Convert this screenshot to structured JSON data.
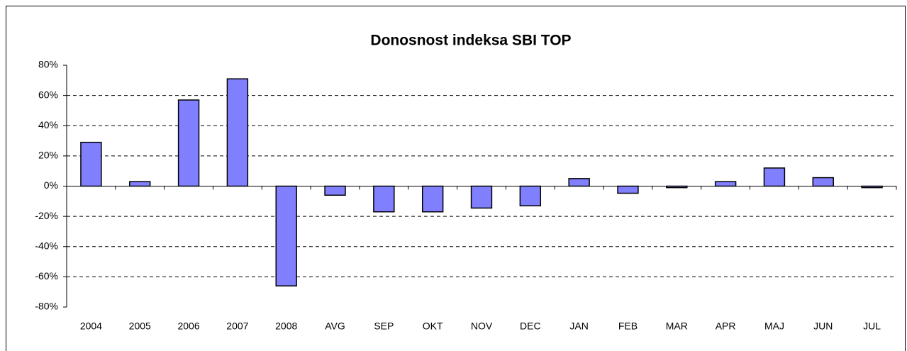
{
  "chart_data": {
    "type": "bar",
    "title": "Donosnost indeksa SBI TOP",
    "categories": [
      "2004",
      "2005",
      "2006",
      "2007",
      "2008",
      "AVG",
      "SEP",
      "OKT",
      "NOV",
      "DEC",
      "JAN",
      "FEB",
      "MAR",
      "APR",
      "MAJ",
      "JUN",
      "JUL"
    ],
    "values": [
      29,
      3,
      57,
      71,
      -66,
      -6,
      -17,
      -17,
      -14.5,
      -13,
      5,
      -4.7,
      -1,
      3,
      12,
      5.6,
      -1
    ],
    "color": "#8080ff",
    "ylim": [
      -80,
      80
    ],
    "yticks": [
      {
        "value": -80,
        "label": "-80%"
      },
      {
        "value": -60,
        "label": "-60%"
      },
      {
        "value": -40,
        "label": "-40%"
      },
      {
        "value": -20,
        "label": "-20%"
      },
      {
        "value": 0,
        "label": "0%"
      },
      {
        "value": 20,
        "label": "20%"
      },
      {
        "value": 40,
        "label": "40%"
      },
      {
        "value": 60,
        "label": "60%"
      },
      {
        "value": 80,
        "label": "80%"
      }
    ],
    "grid": true
  }
}
